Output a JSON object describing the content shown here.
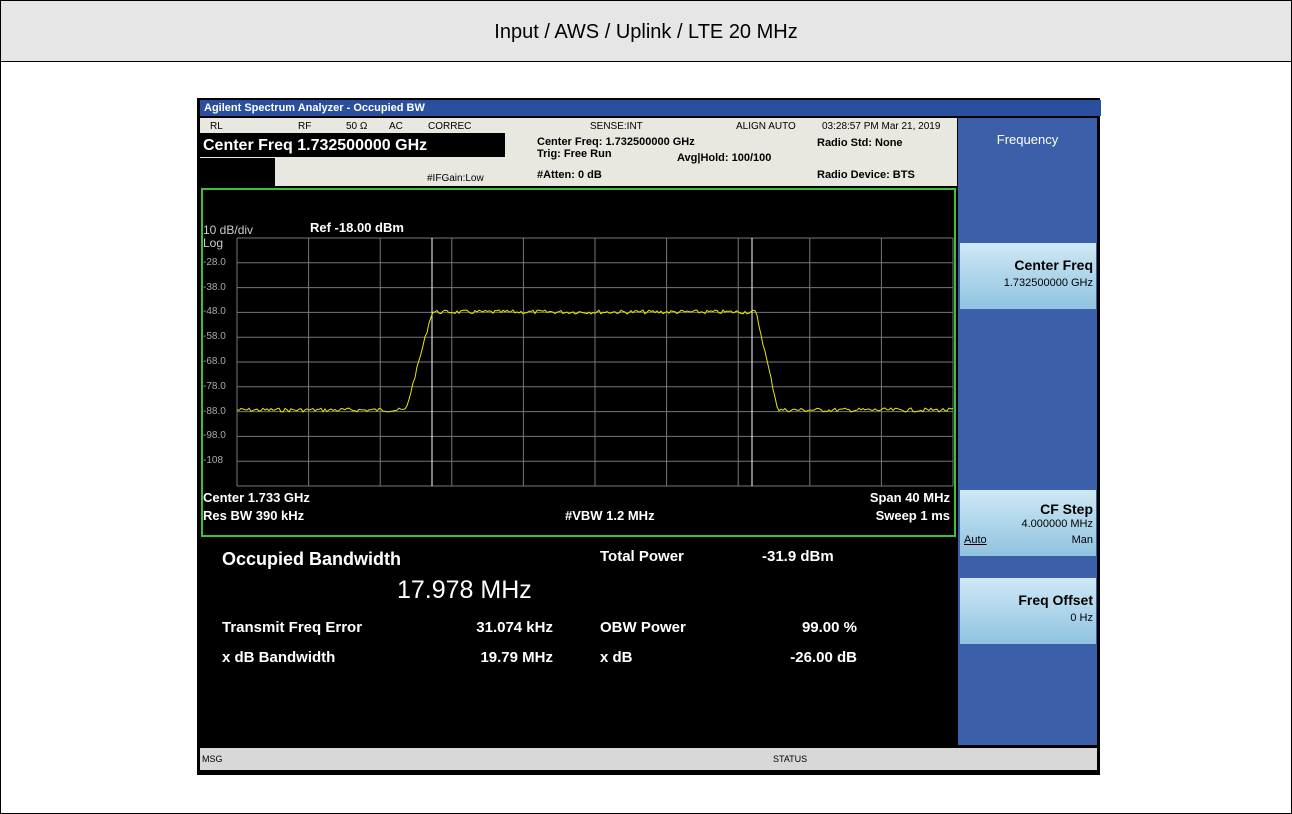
{
  "header": {
    "title": "Input / AWS / Uplink / LTE 20 MHz"
  },
  "window": {
    "title": "Agilent Spectrum Analyzer - Occupied BW"
  },
  "status": {
    "row1": [
      "RL",
      "RF",
      "50 Ω",
      "AC",
      "CORREC",
      "SENSE:INT",
      "ALIGN AUTO",
      "03:28:57 PM Mar 21, 2019"
    ],
    "center_freq": "Center Freq 1.732500000 GHz",
    "if_gain": "#IFGain:Low",
    "center_freq_info": "Center Freq: 1.732500000 GHz",
    "trig": "Trig: Free Run",
    "avg_hold": "Avg|Hold: 100/100",
    "atten": "#Atten: 0 dB",
    "radio_std": "Radio Std: None",
    "radio_device": "Radio Device: BTS"
  },
  "graph": {
    "scale": "10 dB/div",
    "ref": "Ref -18.00 dBm",
    "log": "Log",
    "y_labels": [
      "-28.0",
      "-38.0",
      "-48.0",
      "-58.0",
      "-68.0",
      "-78.0",
      "-88.0",
      "-98.0",
      "-108"
    ],
    "center": "Center 1.733 GHz",
    "res_bw": "Res BW 390 kHz",
    "vbw": "#VBW 1.2 MHz",
    "span": "Span 40 MHz",
    "sweep": "Sweep 1 ms"
  },
  "results": {
    "obw_label": "Occupied Bandwidth",
    "obw_value": "17.978 MHz",
    "total_power_label": "Total Power",
    "total_power_value": "-31.9 dBm",
    "tfe_label": "Transmit Freq Error",
    "tfe_value": "31.074 kHz",
    "obw_power_label": "OBW Power",
    "obw_power_value": "99.00 %",
    "xdb_bw_label": "x dB Bandwidth",
    "xdb_bw_value": "19.79 MHz",
    "xdb_label": "x dB",
    "xdb_value": "-26.00 dB"
  },
  "statusbar": {
    "msg": "MSG",
    "status": "STATUS"
  },
  "softkeys": {
    "menu": "Frequency",
    "center_freq": {
      "label": "Center Freq",
      "value": "1.732500000 GHz"
    },
    "cf_step": {
      "label": "CF Step",
      "value": "4.000000 MHz",
      "auto": "Auto",
      "man": "Man"
    },
    "freq_offset": {
      "label": "Freq Offset",
      "value": "0 Hz"
    }
  }
}
